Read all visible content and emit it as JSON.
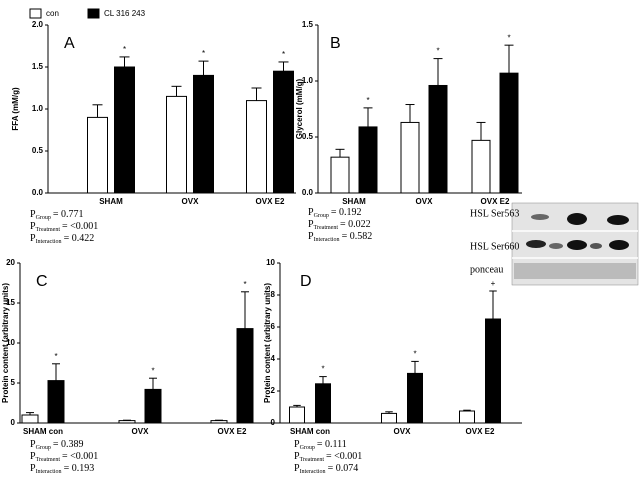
{
  "chart_data": [
    {
      "type": "bar",
      "panel": "A",
      "y_label": "FFA (mM/g)",
      "categories": [
        "SHAM",
        "OVX",
        "OVX E2"
      ],
      "series": [
        {
          "name": "con",
          "color": "#ffffff",
          "values": [
            0.9,
            1.15,
            1.1
          ],
          "errors": [
            0.15,
            0.12,
            0.15
          ]
        },
        {
          "name": "CL 316 243",
          "color": "#000000",
          "values": [
            1.5,
            1.4,
            1.45
          ],
          "errors": [
            0.12,
            0.17,
            0.11
          ],
          "markers": [
            "*",
            "*",
            "*"
          ]
        }
      ],
      "ylim": [
        0,
        2
      ],
      "yticks": [
        {
          "value": 0,
          "label": "0.0"
        },
        {
          "value": 0.5,
          "label": "0.5"
        },
        {
          "value": 1,
          "label": "1.0"
        },
        {
          "value": 1.5,
          "label": "1.5"
        },
        {
          "value": 2,
          "label": "2.0"
        }
      ],
      "legend": "top-left",
      "stats": [
        {
          "symbol": "P",
          "subscript": "Group",
          "text": "= 0.771"
        },
        {
          "symbol": "P",
          "subscript": "Treatment",
          "text": "= <0.001"
        },
        {
          "symbol": "P",
          "subscript": "Interaction",
          "text": "= 0.422"
        }
      ]
    },
    {
      "type": "bar",
      "panel": "B",
      "y_label": "Glycerol (mM/g)",
      "categories": [
        "SHAM",
        "OVX",
        "OVX E2"
      ],
      "series": [
        {
          "name": "con",
          "color": "#ffffff",
          "values": [
            0.32,
            0.63,
            0.47
          ],
          "errors": [
            0.07,
            0.16,
            0.16
          ]
        },
        {
          "name": "CL 316 243",
          "color": "#000000",
          "values": [
            0.59,
            0.96,
            1.07
          ],
          "errors": [
            0.17,
            0.24,
            0.25
          ],
          "markers": [
            "*",
            "*",
            "*"
          ]
        }
      ],
      "ylim": [
        0,
        1.5
      ],
      "yticks": [
        {
          "value": 0,
          "label": "0.0"
        },
        {
          "value": 0.5,
          "label": "0.5"
        },
        {
          "value": 1,
          "label": "1.0"
        },
        {
          "value": 1.5,
          "label": "1.5"
        }
      ],
      "stats": [
        {
          "symbol": "P",
          "subscript": "Group",
          "text": "= 0.192"
        },
        {
          "symbol": "P",
          "subscript": "Treatment",
          "text": "= 0.022"
        },
        {
          "symbol": "P",
          "subscript": "Interaction",
          "text": "= 0.582"
        }
      ],
      "blot_labels": [
        "HSL Ser563",
        "HSL Ser660",
        "ponceau"
      ]
    },
    {
      "type": "bar",
      "panel": "C",
      "y_label": "Protein content (arbitrary units)",
      "categories": [
        "SHAM con",
        "OVX",
        "OVX E2"
      ],
      "series": [
        {
          "name": "con",
          "color": "#ffffff",
          "values": [
            1.0,
            0.3,
            0.3
          ],
          "errors": [
            0.3,
            0.05,
            0.05
          ]
        },
        {
          "name": "CL 316 243",
          "color": "#000000",
          "values": [
            5.3,
            4.2,
            11.8
          ],
          "errors": [
            2.1,
            1.4,
            4.6
          ],
          "markers": [
            "*",
            "*",
            "*"
          ]
        }
      ],
      "ylim": [
        0,
        20
      ],
      "yticks": [
        0,
        5,
        10,
        15,
        20
      ],
      "stats": [
        {
          "symbol": "P",
          "subscript": "Group",
          "text": "= 0.389"
        },
        {
          "symbol": "P",
          "subscript": "Treatment",
          "text": "= <0.001"
        },
        {
          "symbol": "P",
          "subscript": "Interaction",
          "text": "= 0.193"
        }
      ]
    },
    {
      "type": "bar",
      "panel": "D",
      "y_label": "Protein content (arbitrary units)",
      "categories": [
        "SHAM con",
        "OVX",
        "OVX E2"
      ],
      "series": [
        {
          "name": "con",
          "color": "#ffffff",
          "values": [
            1.0,
            0.6,
            0.75
          ],
          "errors": [
            0.1,
            0.1,
            0.05
          ]
        },
        {
          "name": "CL 316 243",
          "color": "#000000",
          "values": [
            2.45,
            3.1,
            6.5
          ],
          "errors": [
            0.45,
            0.75,
            1.75
          ],
          "markers": [
            "*",
            "*",
            "+"
          ]
        }
      ],
      "ylim": [
        0,
        10
      ],
      "yticks": [
        0,
        2,
        4,
        6,
        8,
        10
      ],
      "stats": [
        {
          "symbol": "P",
          "subscript": "Group",
          "text": "= 0.111"
        },
        {
          "symbol": "P",
          "subscript": "Treatment",
          "text": "= <0.001"
        },
        {
          "symbol": "P",
          "subscript": "Interaction",
          "text": "= 0.074"
        }
      ]
    }
  ]
}
